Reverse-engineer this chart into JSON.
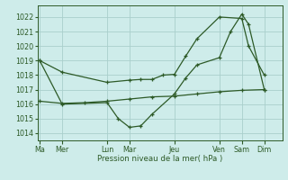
{
  "background_color": "#ceecea",
  "grid_color": "#aacfcc",
  "line_color": "#2d5a27",
  "title": "Pression niveau de la mer( hPa )",
  "ylim": [
    1013.5,
    1022.8
  ],
  "yticks": [
    1014,
    1015,
    1016,
    1017,
    1018,
    1019,
    1020,
    1021,
    1022
  ],
  "x_labels": [
    "Ma",
    "Mer",
    "Lun",
    "Mar",
    "Jeu",
    "Ven",
    "Sam",
    "Dim"
  ],
  "x_tick_pos": [
    0,
    1,
    3,
    4,
    6,
    8,
    9,
    10
  ],
  "xlim": [
    -0.1,
    10.8
  ],
  "series1_x": [
    0,
    1,
    3,
    4,
    4.5,
    5,
    5.5,
    6,
    6.5,
    7,
    8,
    9,
    9.3,
    10
  ],
  "series1_y": [
    1019.0,
    1018.2,
    1017.5,
    1017.65,
    1017.7,
    1017.7,
    1018.0,
    1018.05,
    1019.3,
    1020.5,
    1022.0,
    1021.9,
    1020.0,
    1018.0
  ],
  "series2_x": [
    0,
    1,
    3,
    3.5,
    4,
    4.5,
    5,
    6,
    6.5,
    7,
    8,
    8.5,
    9,
    9.3,
    10
  ],
  "series2_y": [
    1019.0,
    1016.0,
    1016.1,
    1015.0,
    1014.4,
    1014.5,
    1015.3,
    1016.7,
    1017.8,
    1018.7,
    1019.2,
    1021.0,
    1022.2,
    1021.5,
    1017.0
  ],
  "series3_x": [
    0,
    1,
    2,
    3,
    4,
    5,
    6,
    7,
    8,
    9,
    10
  ],
  "series3_y": [
    1016.2,
    1016.05,
    1016.1,
    1016.2,
    1016.35,
    1016.5,
    1016.55,
    1016.7,
    1016.85,
    1016.95,
    1017.0
  ],
  "figsize": [
    3.2,
    2.0
  ],
  "dpi": 100,
  "label_fontsize": 5.8,
  "title_fontsize": 6.2
}
